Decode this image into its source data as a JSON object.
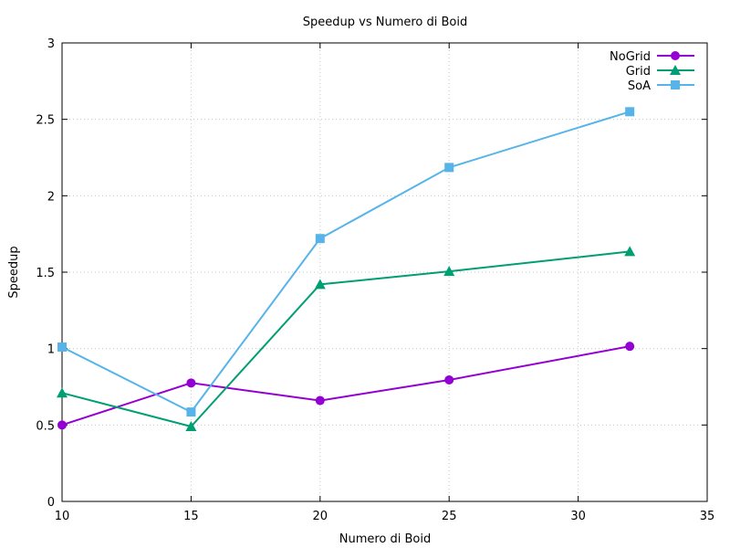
{
  "chart_data": {
    "type": "line",
    "title": "Speedup vs Numero di Boid",
    "xlabel": "Numero di Boid",
    "ylabel": "Speedup",
    "xlim": [
      10,
      35
    ],
    "ylim": [
      0,
      3
    ],
    "x_ticks": [
      10,
      15,
      20,
      25,
      30,
      35
    ],
    "y_ticks": [
      0,
      0.5,
      1,
      1.5,
      2,
      2.5,
      3
    ],
    "x_tick_labels": [
      "10",
      "15",
      "20",
      "25",
      "30",
      "35"
    ],
    "y_tick_labels": [
      "0",
      "0.5",
      "1",
      "1.5",
      "2",
      "2.5",
      "3"
    ],
    "grid": true,
    "legend_position": "top-right",
    "series": [
      {
        "name": "NoGrid",
        "color": "#9400d3",
        "marker": "circle",
        "x": [
          10,
          15,
          20,
          25,
          32
        ],
        "y": [
          0.5,
          0.775,
          0.66,
          0.795,
          1.015
        ]
      },
      {
        "name": "Grid",
        "color": "#009e73",
        "marker": "triangle",
        "x": [
          10,
          15,
          20,
          25,
          32
        ],
        "y": [
          0.71,
          0.49,
          1.42,
          1.505,
          1.635
        ]
      },
      {
        "name": "SoA",
        "color": "#56b4e9",
        "marker": "square",
        "x": [
          10,
          15,
          20,
          25,
          32
        ],
        "y": [
          1.01,
          0.585,
          1.72,
          2.185,
          2.55
        ]
      }
    ]
  }
}
